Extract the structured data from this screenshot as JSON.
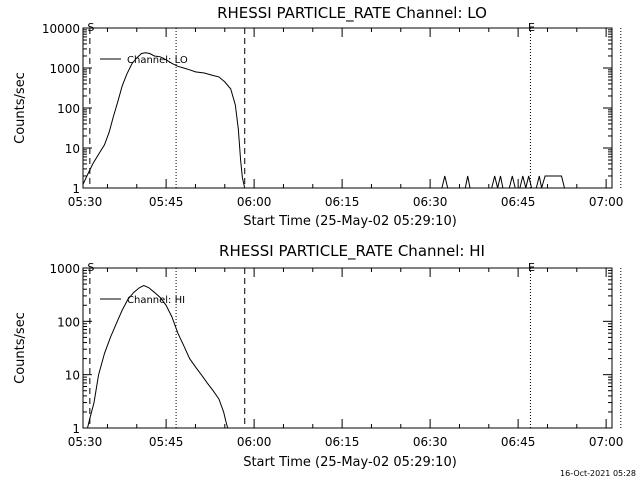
{
  "footer": {
    "timestamp": "16-Oct-2021 05:28"
  },
  "chart_data": [
    {
      "type": "line",
      "title": "RHESSI PARTICLE_RATE Channel: LO",
      "xlabel": "Start Time (25-May-02 05:29:10)",
      "ylabel": "Counts/sec",
      "yscale": "log",
      "xlim": [
        0.833,
        91.0
      ],
      "ylim": [
        1,
        10000
      ],
      "xticks": [
        {
          "x": 0,
          "label": "05:30"
        },
        {
          "x": 15,
          "label": "05:45"
        },
        {
          "x": 30,
          "label": "06:00"
        },
        {
          "x": 45,
          "label": "06:15"
        },
        {
          "x": 60,
          "label": "06:30"
        },
        {
          "x": 75,
          "label": "06:45"
        },
        {
          "x": 90,
          "label": "07:00"
        }
      ],
      "yticks": [
        {
          "y": 1,
          "label": "1"
        },
        {
          "y": 10,
          "label": "10"
        },
        {
          "y": 100,
          "label": "100"
        },
        {
          "y": 1000,
          "label": "1000"
        },
        {
          "y": 10000,
          "label": "10000"
        }
      ],
      "vlines": [
        {
          "x": 2.0,
          "style": "dashed",
          "label": "S"
        },
        {
          "x": 16.7,
          "style": "dotted"
        },
        {
          "x": 28.4,
          "style": "dashed"
        },
        {
          "x": 77.1,
          "style": "dotted",
          "label": "E"
        },
        {
          "x": 92.5,
          "style": "dotted"
        }
      ],
      "legend": {
        "entries": [
          "Channel: LO"
        ],
        "placement": "top-left"
      },
      "series": [
        {
          "name": "Channel: LO",
          "points": [
            [
              0.8,
              1.2
            ],
            [
              1.5,
              2
            ],
            [
              2.5,
              4
            ],
            [
              3.5,
              7
            ],
            [
              4.5,
              12
            ],
            [
              5.3,
              25
            ],
            [
              6.0,
              60
            ],
            [
              6.8,
              150
            ],
            [
              7.5,
              350
            ],
            [
              8.3,
              700
            ],
            [
              9.2,
              1300
            ],
            [
              10.0,
              1800
            ],
            [
              10.8,
              2300
            ],
            [
              11.5,
              2400
            ],
            [
              12.2,
              2300
            ],
            [
              13.0,
              2000
            ],
            [
              14.0,
              1900
            ],
            [
              15.0,
              1600
            ],
            [
              16.0,
              1300
            ],
            [
              17.0,
              1100
            ],
            [
              18.0,
              1000
            ],
            [
              19.0,
              900
            ],
            [
              20.0,
              800
            ],
            [
              21.5,
              750
            ],
            [
              23.0,
              650
            ],
            [
              24.0,
              600
            ],
            [
              25.0,
              450
            ],
            [
              26.0,
              300
            ],
            [
              26.8,
              120
            ],
            [
              27.3,
              30
            ],
            [
              27.7,
              5
            ],
            [
              28.0,
              1.8
            ],
            [
              28.4,
              1
            ]
          ]
        },
        {
          "name": "",
          "points": [
            [
              62.0,
              1
            ],
            [
              62.5,
              2
            ],
            [
              63.0,
              1
            ],
            [
              66.0,
              1
            ],
            [
              66.4,
              2
            ],
            [
              66.8,
              1
            ],
            [
              70.5,
              1
            ],
            [
              71.0,
              2
            ],
            [
              71.5,
              1
            ],
            [
              72.0,
              2
            ],
            [
              72.4,
              1
            ],
            [
              73.5,
              1
            ],
            [
              74.0,
              2
            ],
            [
              74.5,
              1
            ],
            [
              75.3,
              1
            ],
            [
              75.8,
              2
            ],
            [
              76.3,
              1
            ],
            [
              76.8,
              2
            ],
            [
              77.3,
              1
            ],
            [
              78.1,
              1
            ],
            [
              78.6,
              2
            ],
            [
              79.0,
              1
            ],
            [
              79.6,
              2
            ],
            [
              82.4,
              2
            ],
            [
              82.9,
              1
            ]
          ]
        }
      ]
    },
    {
      "type": "line",
      "title": "RHESSI PARTICLE_RATE Channel: HI",
      "xlabel": "Start Time (25-May-02 05:29:10)",
      "ylabel": "Counts/sec",
      "yscale": "log",
      "xlim": [
        0.833,
        91.0
      ],
      "ylim": [
        1,
        1000
      ],
      "xticks": [
        {
          "x": 0,
          "label": "05:30"
        },
        {
          "x": 15,
          "label": "05:45"
        },
        {
          "x": 30,
          "label": "06:00"
        },
        {
          "x": 45,
          "label": "06:15"
        },
        {
          "x": 60,
          "label": "06:30"
        },
        {
          "x": 75,
          "label": "06:45"
        },
        {
          "x": 90,
          "label": "07:00"
        }
      ],
      "yticks": [
        {
          "y": 1,
          "label": "1"
        },
        {
          "y": 10,
          "label": "10"
        },
        {
          "y": 100,
          "label": "100"
        },
        {
          "y": 1000,
          "label": "1000"
        }
      ],
      "vlines": [
        {
          "x": 2.0,
          "style": "dashed",
          "label": "S"
        },
        {
          "x": 16.7,
          "style": "dotted"
        },
        {
          "x": 28.4,
          "style": "dashed"
        },
        {
          "x": 77.1,
          "style": "dotted",
          "label": "E"
        },
        {
          "x": 92.5,
          "style": "dotted"
        }
      ],
      "legend": {
        "entries": [
          "Channel: HI"
        ],
        "placement": "top-left"
      },
      "series": [
        {
          "name": "Channel: HI",
          "points": [
            [
              1.6,
              1
            ],
            [
              2.0,
              1.5
            ],
            [
              2.7,
              3
            ],
            [
              3.5,
              10
            ],
            [
              4.5,
              25
            ],
            [
              5.5,
              50
            ],
            [
              6.5,
              90
            ],
            [
              7.5,
              160
            ],
            [
              8.5,
              260
            ],
            [
              9.5,
              350
            ],
            [
              10.5,
              430
            ],
            [
              11.2,
              470
            ],
            [
              12.0,
              430
            ],
            [
              13.0,
              350
            ],
            [
              14.0,
              280
            ],
            [
              15.0,
              200
            ],
            [
              16.0,
              120
            ],
            [
              17.0,
              60
            ],
            [
              18.0,
              35
            ],
            [
              19.0,
              20
            ],
            [
              20.0,
              14
            ],
            [
              21.0,
              10
            ],
            [
              22.0,
              7
            ],
            [
              23.0,
              5
            ],
            [
              24.0,
              3.5
            ],
            [
              24.8,
              2
            ],
            [
              25.2,
              1.3
            ],
            [
              25.5,
              1
            ]
          ]
        }
      ]
    }
  ]
}
